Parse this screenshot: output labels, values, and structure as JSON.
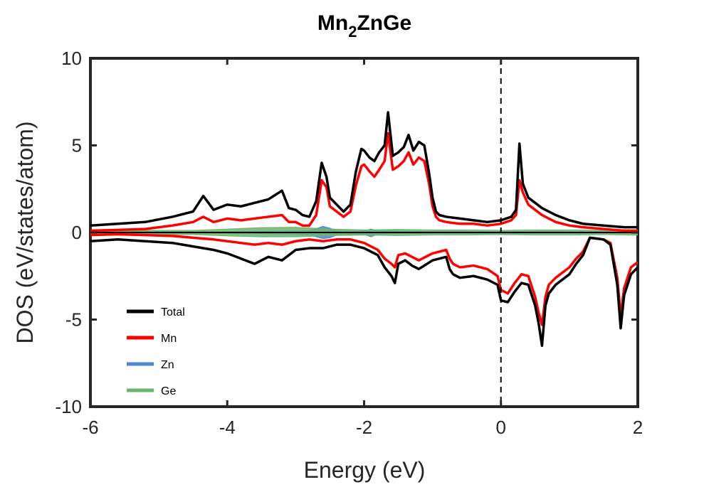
{
  "chart_data": {
    "type": "line",
    "title": {
      "base": "Mn",
      "sub": "2",
      "rest": "ZnGe"
    },
    "xlabel": "Energy (eV)",
    "ylabel": "DOS (eV/states/atom)",
    "xlim": [
      -6,
      2
    ],
    "ylim": [
      -10,
      10
    ],
    "xticks": [
      -6,
      -4,
      -2,
      0,
      2
    ],
    "yticks": [
      -10,
      -5,
      0,
      5,
      10
    ],
    "xtick_labels": [
      "-6",
      "-4",
      "-2",
      "0",
      "2"
    ],
    "ytick_labels": [
      "-10",
      "-5",
      "0",
      "5",
      "10"
    ],
    "fermi_level": 0,
    "grid": false,
    "legend_position": "lower-left",
    "series": [
      {
        "name": "Total",
        "color": "#000000",
        "style": "line",
        "spin": "up",
        "x": [
          -6.0,
          -5.6,
          -5.2,
          -4.8,
          -4.5,
          -4.35,
          -4.2,
          -4.0,
          -3.8,
          -3.6,
          -3.4,
          -3.2,
          -3.1,
          -3.0,
          -2.9,
          -2.8,
          -2.7,
          -2.62,
          -2.55,
          -2.5,
          -2.4,
          -2.3,
          -2.2,
          -2.12,
          -2.04,
          -2.0,
          -1.92,
          -1.85,
          -1.78,
          -1.7,
          -1.65,
          -1.58,
          -1.5,
          -1.42,
          -1.35,
          -1.28,
          -1.2,
          -1.12,
          -1.05,
          -1.0,
          -0.95,
          -0.9,
          -0.8,
          -0.6,
          -0.4,
          -0.2,
          0.0,
          0.15,
          0.22,
          0.27,
          0.32,
          0.4,
          0.6,
          0.8,
          1.0,
          1.2,
          1.5,
          1.8,
          2.0
        ],
        "y": [
          0.4,
          0.5,
          0.6,
          0.9,
          1.2,
          2.1,
          1.3,
          1.6,
          1.5,
          1.7,
          1.9,
          2.4,
          1.4,
          1.3,
          1.0,
          0.9,
          1.8,
          4.0,
          3.2,
          2.0,
          1.6,
          1.2,
          1.6,
          3.5,
          4.8,
          4.7,
          4.3,
          4.1,
          4.6,
          5.0,
          6.9,
          4.4,
          4.6,
          4.9,
          5.6,
          4.7,
          5.2,
          5.0,
          3.4,
          2.0,
          1.2,
          1.0,
          0.9,
          0.8,
          0.7,
          0.6,
          0.7,
          0.9,
          1.3,
          5.1,
          2.8,
          2.0,
          1.4,
          1.0,
          0.7,
          0.5,
          0.4,
          0.3,
          0.3
        ]
      },
      {
        "name": "Mn",
        "color": "#ff0000",
        "style": "line",
        "spin": "up",
        "x": [
          -6.0,
          -5.6,
          -5.2,
          -4.8,
          -4.5,
          -4.35,
          -4.2,
          -4.0,
          -3.8,
          -3.6,
          -3.4,
          -3.2,
          -3.1,
          -3.0,
          -2.9,
          -2.8,
          -2.7,
          -2.62,
          -2.55,
          -2.5,
          -2.4,
          -2.3,
          -2.2,
          -2.12,
          -2.04,
          -2.0,
          -1.92,
          -1.85,
          -1.78,
          -1.7,
          -1.65,
          -1.58,
          -1.5,
          -1.42,
          -1.35,
          -1.28,
          -1.2,
          -1.12,
          -1.05,
          -1.0,
          -0.95,
          -0.9,
          -0.8,
          -0.6,
          -0.4,
          -0.2,
          0.0,
          0.15,
          0.22,
          0.27,
          0.32,
          0.4,
          0.6,
          0.8,
          1.0,
          1.2,
          1.5,
          1.8,
          2.0
        ],
        "y": [
          0.1,
          0.15,
          0.2,
          0.4,
          0.6,
          0.9,
          0.6,
          0.8,
          0.7,
          0.8,
          0.9,
          1.0,
          0.6,
          0.6,
          0.4,
          0.4,
          1.0,
          3.0,
          2.6,
          1.5,
          1.2,
          0.9,
          1.2,
          2.7,
          3.8,
          3.9,
          3.5,
          3.2,
          3.6,
          4.1,
          5.7,
          3.6,
          3.8,
          4.1,
          4.6,
          3.9,
          4.3,
          4.1,
          2.8,
          1.5,
          0.9,
          0.7,
          0.6,
          0.5,
          0.5,
          0.4,
          0.5,
          0.7,
          1.0,
          3.0,
          2.3,
          1.6,
          1.0,
          0.6,
          0.4,
          0.3,
          0.2,
          0.1,
          0.1
        ]
      },
      {
        "name": "Total",
        "color": "#000000",
        "style": "line",
        "spin": "down",
        "x": [
          -6.0,
          -5.6,
          -5.2,
          -4.8,
          -4.5,
          -4.2,
          -4.0,
          -3.8,
          -3.6,
          -3.4,
          -3.2,
          -3.0,
          -2.8,
          -2.6,
          -2.4,
          -2.2,
          -2.0,
          -1.8,
          -1.7,
          -1.6,
          -1.55,
          -1.5,
          -1.4,
          -1.3,
          -1.2,
          -1.0,
          -0.8,
          -0.75,
          -0.7,
          -0.6,
          -0.4,
          -0.2,
          -0.05,
          0.0,
          0.1,
          0.2,
          0.3,
          0.4,
          0.5,
          0.55,
          0.6,
          0.65,
          0.7,
          0.8,
          1.0,
          1.1,
          1.2,
          1.3,
          1.5,
          1.6,
          1.7,
          1.75,
          1.8,
          1.9,
          2.0
        ],
        "y": [
          -0.5,
          -0.4,
          -0.5,
          -0.6,
          -0.8,
          -1.0,
          -1.2,
          -1.5,
          -1.8,
          -1.4,
          -1.6,
          -1.0,
          -0.9,
          -0.9,
          -0.7,
          -0.7,
          -0.9,
          -1.3,
          -2.0,
          -2.5,
          -2.9,
          -1.8,
          -1.6,
          -1.9,
          -2.1,
          -1.6,
          -1.4,
          -2.1,
          -2.4,
          -2.6,
          -2.5,
          -2.7,
          -3.0,
          -3.9,
          -4.0,
          -3.4,
          -2.9,
          -3.0,
          -4.2,
          -5.2,
          -6.5,
          -4.2,
          -3.5,
          -3.0,
          -2.4,
          -1.8,
          -1.3,
          -0.3,
          -0.4,
          -0.7,
          -3.0,
          -5.5,
          -3.6,
          -2.4,
          -2.0
        ]
      },
      {
        "name": "Mn",
        "color": "#ff0000",
        "style": "line",
        "spin": "down",
        "x": [
          -6.0,
          -5.6,
          -5.2,
          -4.8,
          -4.5,
          -4.2,
          -4.0,
          -3.8,
          -3.6,
          -3.4,
          -3.2,
          -3.0,
          -2.8,
          -2.6,
          -2.4,
          -2.2,
          -2.0,
          -1.8,
          -1.7,
          -1.6,
          -1.55,
          -1.5,
          -1.4,
          -1.3,
          -1.2,
          -1.0,
          -0.8,
          -0.75,
          -0.7,
          -0.6,
          -0.4,
          -0.2,
          -0.05,
          0.0,
          0.1,
          0.2,
          0.3,
          0.4,
          0.5,
          0.55,
          0.6,
          0.65,
          0.7,
          0.8,
          1.0,
          1.1,
          1.2,
          1.3,
          1.5,
          1.6,
          1.7,
          1.75,
          1.8,
          1.9,
          2.0
        ],
        "y": [
          -0.15,
          -0.1,
          -0.15,
          -0.2,
          -0.3,
          -0.4,
          -0.5,
          -0.6,
          -0.7,
          -0.6,
          -0.7,
          -0.5,
          -0.4,
          -0.5,
          -0.4,
          -0.4,
          -0.6,
          -1.0,
          -1.5,
          -1.8,
          -2.0,
          -1.3,
          -1.2,
          -1.4,
          -1.6,
          -1.2,
          -1.0,
          -1.5,
          -1.8,
          -2.0,
          -1.9,
          -2.1,
          -2.5,
          -3.3,
          -3.5,
          -2.9,
          -2.4,
          -2.5,
          -3.7,
          -4.6,
          -5.3,
          -3.7,
          -3.0,
          -2.6,
          -2.0,
          -1.5,
          -1.1,
          -0.3,
          -0.4,
          -0.6,
          -2.6,
          -4.8,
          -3.2,
          -2.0,
          -1.7
        ]
      },
      {
        "name": "Zn",
        "color": "#4a86d4",
        "style": "area",
        "x": [
          -6.0,
          -4.0,
          -3.0,
          -2.8,
          -2.6,
          -2.5,
          -2.4,
          -2.0,
          -1.9,
          -1.8,
          -1.0,
          0.0,
          2.0
        ],
        "y_up": [
          0.05,
          0.05,
          0.08,
          0.1,
          0.35,
          0.25,
          0.1,
          0.08,
          0.2,
          0.1,
          0.05,
          0.05,
          0.05
        ],
        "y_down": [
          -0.05,
          -0.05,
          -0.1,
          -0.15,
          -0.35,
          -0.3,
          -0.15,
          -0.1,
          -0.25,
          -0.1,
          -0.05,
          -0.05,
          -0.05
        ]
      },
      {
        "name": "Ge",
        "color": "#6db36d",
        "style": "area",
        "x": [
          -6.0,
          -5.0,
          -4.5,
          -4.0,
          -3.5,
          -3.0,
          -2.5,
          -2.0,
          -1.5,
          -1.0,
          -0.5,
          0.0,
          0.5,
          1.0,
          1.5,
          2.0
        ],
        "y_up": [
          0.15,
          0.12,
          0.12,
          0.2,
          0.28,
          0.3,
          0.2,
          0.15,
          0.18,
          0.15,
          0.15,
          0.12,
          0.15,
          0.15,
          0.12,
          0.15
        ],
        "y_down": [
          -0.15,
          -0.12,
          -0.12,
          -0.2,
          -0.25,
          -0.25,
          -0.18,
          -0.15,
          -0.18,
          -0.15,
          -0.15,
          -0.12,
          -0.15,
          -0.15,
          -0.12,
          -0.15
        ]
      }
    ],
    "legend": [
      {
        "name": "Total",
        "color": "#000000"
      },
      {
        "name": "Mn",
        "color": "#ff0000"
      },
      {
        "name": "Zn",
        "color": "#4a86d4"
      },
      {
        "name": "Ge",
        "color": "#6db36d"
      }
    ]
  }
}
